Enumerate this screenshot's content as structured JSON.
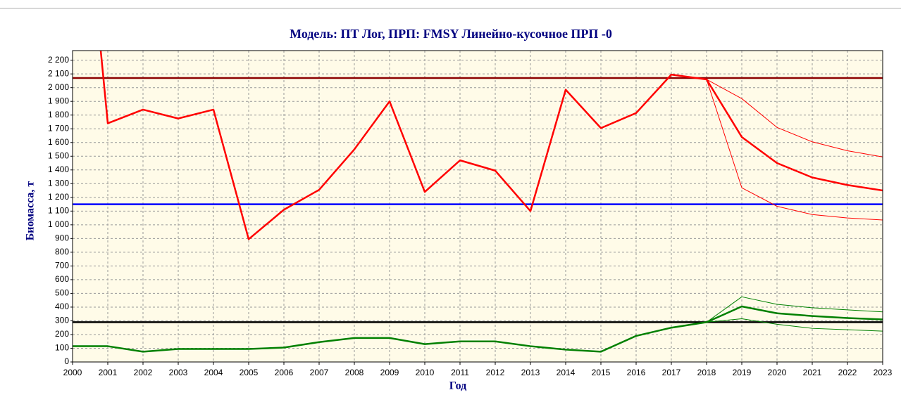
{
  "chart_data": {
    "type": "line",
    "title": "Модель: ПТ Лог,   ПРП: FMSY Линейно-кусочное ПРП -0",
    "xlabel": "Год",
    "ylabel": "Биомасса, т",
    "x": [
      2000,
      2001,
      2002,
      2003,
      2004,
      2005,
      2006,
      2007,
      2008,
      2009,
      2010,
      2011,
      2012,
      2013,
      2014,
      2015,
      2016,
      2017,
      2018,
      2019,
      2020,
      2021,
      2022,
      2023
    ],
    "xlim": [
      2000,
      2023
    ],
    "xticks": [
      2000,
      2001,
      2002,
      2003,
      2004,
      2005,
      2006,
      2007,
      2008,
      2009,
      2010,
      2011,
      2012,
      2013,
      2014,
      2015,
      2016,
      2017,
      2018,
      2019,
      2020,
      2021,
      2022,
      2023
    ],
    "ylim": [
      0,
      2270
    ],
    "yticks": [
      0,
      100,
      200,
      300,
      400,
      500,
      600,
      700,
      800,
      900,
      {
        "value": 1000,
        "label": "1 000"
      },
      {
        "value": 1100,
        "label": "1 100"
      },
      {
        "value": 1200,
        "label": "1 200"
      },
      {
        "value": 1300,
        "label": "1 300"
      },
      {
        "value": 1400,
        "label": "1 400"
      },
      {
        "value": 1500,
        "label": "1 500"
      },
      {
        "value": 1600,
        "label": "1 600"
      },
      {
        "value": 1700,
        "label": "1 700"
      },
      {
        "value": 1800,
        "label": "1 800"
      },
      {
        "value": 1900,
        "label": "1 900"
      },
      {
        "value": 2000,
        "label": "2 000"
      },
      {
        "value": 2100,
        "label": "2 100"
      },
      {
        "value": 2200,
        "label": "2 200"
      }
    ],
    "grid": true,
    "hlines": [
      {
        "value": 2070,
        "color": "#8b0000"
      },
      {
        "value": 1150,
        "color": "#0000ff"
      },
      {
        "value": 290,
        "color": "#000000"
      }
    ],
    "series": [
      {
        "color": "#ff0000",
        "line_width": 2.5,
        "values": [
          4390,
          1740,
          1840,
          1775,
          1840,
          895,
          1110,
          1255,
          1550,
          1900,
          1240,
          1470,
          1395,
          1100,
          1985,
          1705,
          1815,
          2095,
          2060,
          1640,
          1450,
          1345,
          1290,
          1250
        ]
      },
      {
        "color": "#ff0000",
        "line_width": 1,
        "values": [
          null,
          null,
          null,
          null,
          null,
          null,
          null,
          null,
          null,
          null,
          null,
          null,
          null,
          null,
          null,
          null,
          null,
          null,
          2060,
          1920,
          1710,
          1605,
          1540,
          1495
        ]
      },
      {
        "color": "#ff0000",
        "line_width": 1,
        "values": [
          null,
          null,
          null,
          null,
          null,
          null,
          null,
          null,
          null,
          null,
          null,
          null,
          null,
          null,
          null,
          null,
          null,
          null,
          2060,
          1270,
          1135,
          1075,
          1050,
          1035
        ]
      },
      {
        "color": "#008000",
        "line_width": 2.5,
        "values": [
          115,
          115,
          75,
          95,
          95,
          95,
          105,
          145,
          175,
          175,
          130,
          150,
          150,
          115,
          90,
          75,
          190,
          250,
          290,
          405,
          355,
          335,
          320,
          310
        ]
      },
      {
        "color": "#008000",
        "line_width": 1,
        "values": [
          null,
          null,
          null,
          null,
          null,
          null,
          null,
          null,
          null,
          null,
          null,
          null,
          null,
          null,
          null,
          null,
          null,
          null,
          290,
          475,
          420,
          395,
          380,
          365
        ]
      },
      {
        "color": "#008000",
        "line_width": 1,
        "values": [
          null,
          null,
          null,
          null,
          null,
          null,
          null,
          null,
          null,
          null,
          null,
          null,
          null,
          null,
          null,
          null,
          null,
          null,
          290,
          315,
          275,
          245,
          235,
          225
        ]
      }
    ]
  }
}
